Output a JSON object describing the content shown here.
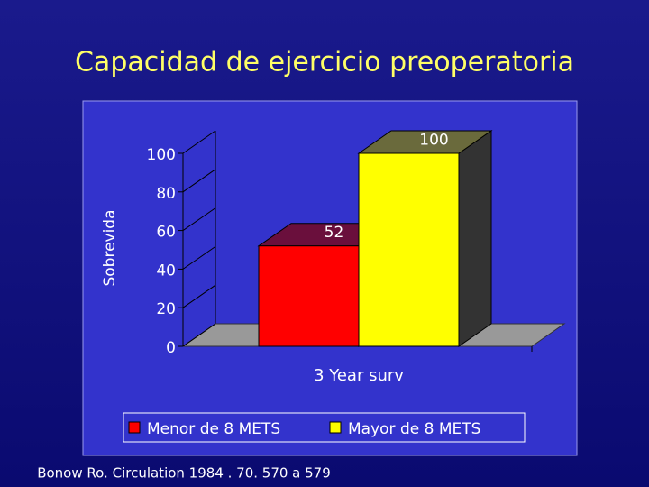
{
  "chart_data": {
    "type": "bar3d",
    "title": "Capacidad de ejercicio preoperatoria",
    "y_label": "Sobrevida",
    "categories": [
      "3 Year surv"
    ],
    "series": [
      {
        "name": "Menor de 8 METS",
        "color": "#ff0000",
        "values": [
          52
        ]
      },
      {
        "name": "Mayor de 8 METS",
        "color": "#ffff00",
        "values": [
          100
        ]
      }
    ],
    "ylim": [
      0,
      100
    ],
    "yticks": [
      0,
      20,
      40,
      60,
      80,
      100
    ],
    "legend": "bottom",
    "source": "Bonow Ro. Circulation 1984 . 70. 570 a 579"
  }
}
